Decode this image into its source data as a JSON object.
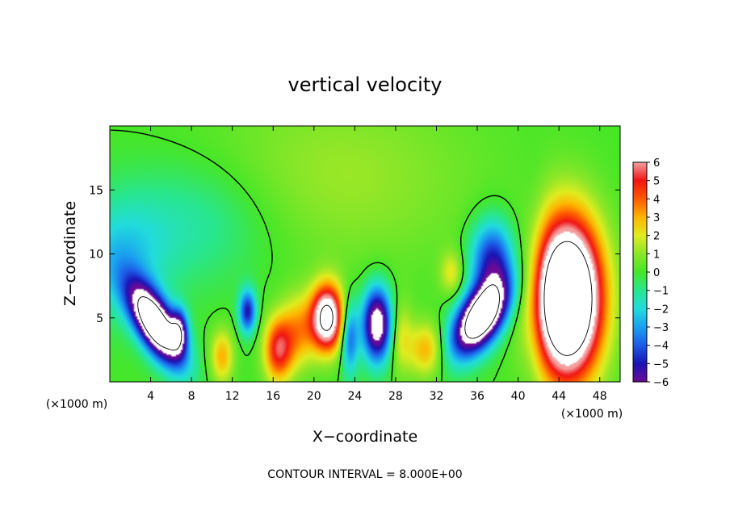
{
  "chart_data": {
    "type": "heatmap",
    "title": "vertical velocity",
    "xlabel": "X−coordinate",
    "ylabel": "Z−coordinate",
    "x_unit_label": "(×1000 m)",
    "footer": "CONTOUR INTERVAL = 8.000E+00",
    "xlim": [
      0,
      50
    ],
    "ylim": [
      0,
      20
    ],
    "x_ticks": [
      4,
      8,
      12,
      16,
      20,
      24,
      28,
      32,
      36,
      40,
      44,
      48
    ],
    "y_ticks": [
      5,
      10,
      15
    ],
    "colorbar": {
      "labels": [
        "6",
        "5",
        "4",
        "3",
        "2",
        "1",
        "0",
        "−1",
        "−2",
        "−3",
        "−4",
        "−5",
        "−6"
      ],
      "stops": [
        {
          "v": -6,
          "c": "#6a0a96"
        },
        {
          "v": -5,
          "c": "#1a14b4"
        },
        {
          "v": -4,
          "c": "#1e5ae6"
        },
        {
          "v": -3,
          "c": "#1aa0f0"
        },
        {
          "v": -2,
          "c": "#22dcdc"
        },
        {
          "v": -1,
          "c": "#28e690"
        },
        {
          "v": 0,
          "c": "#46e628"
        },
        {
          "v": 1,
          "c": "#8ce628"
        },
        {
          "v": 2,
          "c": "#e0ec20"
        },
        {
          "v": 3,
          "c": "#ffb400"
        },
        {
          "v": 4,
          "c": "#ff5a00"
        },
        {
          "v": 5,
          "c": "#f01414"
        },
        {
          "v": 6,
          "c": "#f5a0a0"
        }
      ]
    },
    "features": [
      {
        "x": 4.5,
        "z": 4.5,
        "amplitude": -11,
        "sx": 1.4,
        "sz": 2.2,
        "tilt": -0.55
      },
      {
        "x": 6.8,
        "z": 4.0,
        "amplitude": -5,
        "sx": 0.6,
        "sz": 1.2,
        "tilt": 0
      },
      {
        "x": 1.0,
        "z": 9.5,
        "amplitude": -2,
        "sx": 3.0,
        "sz": 3.0,
        "tilt": 0
      },
      {
        "x": 8.0,
        "z": 12.5,
        "amplitude": -1.5,
        "sx": 6.0,
        "sz": 3.5,
        "tilt": 0
      },
      {
        "x": 11.0,
        "z": 2.0,
        "amplitude": 3,
        "sx": 0.8,
        "sz": 1.5,
        "tilt": 0
      },
      {
        "x": 13.5,
        "z": 5.5,
        "amplitude": -5,
        "sx": 0.6,
        "sz": 1.2,
        "tilt": 0
      },
      {
        "x": 16.5,
        "z": 2.5,
        "amplitude": 5,
        "sx": 1.0,
        "sz": 1.8,
        "tilt": 0
      },
      {
        "x": 18.5,
        "z": 4.0,
        "amplitude": 3,
        "sx": 1.2,
        "sz": 2.0,
        "tilt": 0
      },
      {
        "x": 21.3,
        "z": 5.0,
        "amplitude": 9,
        "sx": 1.1,
        "sz": 1.8,
        "tilt": 0
      },
      {
        "x": 23.5,
        "z": 3.5,
        "amplitude": -4,
        "sx": 0.6,
        "sz": 2.0,
        "tilt": 0
      },
      {
        "x": 26.2,
        "z": 4.5,
        "amplitude": -8,
        "sx": 1.0,
        "sz": 2.0,
        "tilt": 0
      },
      {
        "x": 28.5,
        "z": 3.5,
        "amplitude": 2,
        "sx": 0.8,
        "sz": 2.0,
        "tilt": 0
      },
      {
        "x": 31.0,
        "z": 2.5,
        "amplitude": 3,
        "sx": 1.2,
        "sz": 1.5,
        "tilt": 0
      },
      {
        "x": 33.5,
        "z": 8.5,
        "amplitude": 2,
        "sx": 0.8,
        "sz": 1.2,
        "tilt": 0
      },
      {
        "x": 36.3,
        "z": 5.0,
        "amplitude": -11,
        "sx": 1.6,
        "sz": 2.0,
        "tilt": 0.5
      },
      {
        "x": 37.5,
        "z": 9.5,
        "amplitude": -5,
        "sx": 1.5,
        "sz": 2.2,
        "tilt": 0
      },
      {
        "x": 44.8,
        "z": 6.5,
        "amplitude": 14,
        "sx": 2.3,
        "sz": 4.2,
        "tilt": 0
      },
      {
        "x": 41.5,
        "z": 7.0,
        "amplitude": -1.2,
        "sx": 1.0,
        "sz": 5.0,
        "tilt": 0
      },
      {
        "x": 22.0,
        "z": 16.0,
        "amplitude": 1.2,
        "sx": 10.0,
        "sz": 5.0,
        "tilt": 0
      }
    ]
  }
}
